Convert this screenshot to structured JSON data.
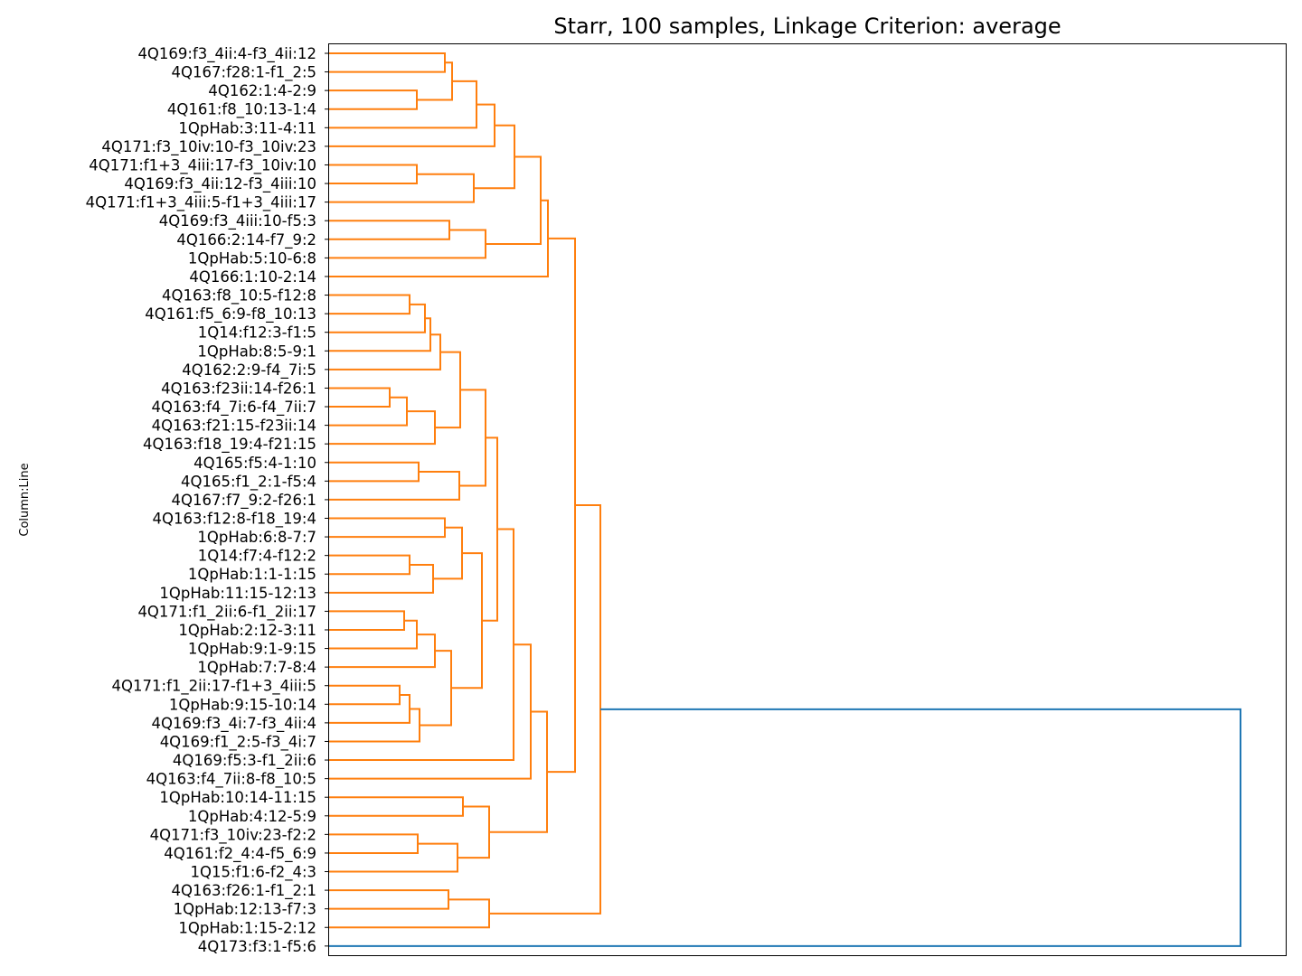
{
  "chart_data": {
    "type": "dendrogram",
    "title": "Starr, 100 samples, Linkage Criterion: average",
    "ylabel": "Column:Line",
    "orientation": "horizontal",
    "colors": {
      "cluster": "#ff7f0e",
      "root": "#1f77b4"
    },
    "leaves": [
      "4Q169:f3_4ii:4-f3_4ii:12",
      "4Q167:f28:1-f1_2:5",
      "4Q162:1:4-2:9",
      "4Q161:f8_10:13-1:4",
      "1QpHab:3:11-4:11",
      "4Q171:f3_10iv:10-f3_10iv:23",
      "4Q171:f1+3_4iii:17-f3_10iv:10",
      "4Q169:f3_4ii:12-f3_4iii:10",
      "4Q171:f1+3_4iii:5-f1+3_4iii:17",
      "4Q169:f3_4iii:10-f5:3",
      "4Q166:2:14-f7_9:2",
      "1QpHab:5:10-6:8",
      "4Q166:1:10-2:14",
      "4Q163:f8_10:5-f12:8",
      "4Q161:f5_6:9-f8_10:13",
      "1Q14:f12:3-f1:5",
      "1QpHab:8:5-9:1",
      "4Q162:2:9-f4_7i:5",
      "4Q163:f23ii:14-f26:1",
      "4Q163:f4_7i:6-f4_7ii:7",
      "4Q163:f21:15-f23ii:14",
      "4Q163:f18_19:4-f21:15",
      "4Q165:f5:4-1:10",
      "4Q165:f1_2:1-f5:4",
      "4Q167:f7_9:2-f26:1",
      "4Q163:f12:8-f18_19:4",
      "1QpHab:6:8-7:7",
      "1Q14:f7:4-f12:2",
      "1QpHab:1:1-1:15",
      "1QpHab:11:15-12:13",
      "4Q171:f1_2ii:6-f1_2ii:17",
      "1QpHab:2:12-3:11",
      "1QpHab:9:1-9:15",
      "1QpHab:7:7-8:4",
      "4Q171:f1_2ii:17-f1+3_4iii:5",
      "1QpHab:9:15-10:14",
      "4Q169:f3_4i:7-f3_4ii:4",
      "4Q169:f1_2:5-f3_4i:7",
      "4Q169:f5:3-f1_2ii:6",
      "4Q163:f4_7ii:8-f8_10:5",
      "1QpHab:10:14-11:15",
      "1QpHab:4:12-5:9",
      "4Q171:f3_10iv:23-f2:2",
      "4Q161:f2_4:4-f5_6:9",
      "1Q15:f1:6-f2_4:3",
      "4Q163:f26:1-f1_2:1",
      "1QpHab:12:13-f7:3",
      "1QpHab:1:15-2:12",
      "4Q173:f3:1-f5:6"
    ],
    "merges": [
      {
        "id": "n0",
        "a": "L0",
        "b": "L1",
        "h": 492
      },
      {
        "id": "n1",
        "a": "L2",
        "b": "L3",
        "h": 461
      },
      {
        "id": "n2",
        "a": "n0",
        "b": "n1",
        "h": 500
      },
      {
        "id": "n3",
        "a": "n2",
        "b": "L4",
        "h": 527
      },
      {
        "id": "n4",
        "a": "n3",
        "b": "L5",
        "h": 547
      },
      {
        "id": "n5",
        "a": "L6",
        "b": "L7",
        "h": 461
      },
      {
        "id": "n6",
        "a": "n5",
        "b": "L8",
        "h": 524
      },
      {
        "id": "n7",
        "a": "n4",
        "b": "n6",
        "h": 569
      },
      {
        "id": "n8",
        "a": "L9",
        "b": "L10",
        "h": 497
      },
      {
        "id": "n9",
        "a": "n8",
        "b": "L11",
        "h": 537
      },
      {
        "id": "n10",
        "a": "n7",
        "b": "n9",
        "h": 598
      },
      {
        "id": "n11",
        "a": "n10",
        "b": "L12",
        "h": 606
      },
      {
        "id": "n12",
        "a": "L13",
        "b": "L14",
        "h": 453
      },
      {
        "id": "n13",
        "a": "n12",
        "b": "L15",
        "h": 470
      },
      {
        "id": "n14",
        "a": "n13",
        "b": "L16",
        "h": 476
      },
      {
        "id": "n15",
        "a": "n14",
        "b": "L17",
        "h": 487
      },
      {
        "id": "n16",
        "a": "L18",
        "b": "L19",
        "h": 431
      },
      {
        "id": "n17",
        "a": "n16",
        "b": "L20",
        "h": 450
      },
      {
        "id": "n18",
        "a": "n17",
        "b": "L21",
        "h": 481
      },
      {
        "id": "n19",
        "a": "n15",
        "b": "n18",
        "h": 509
      },
      {
        "id": "n20",
        "a": "L22",
        "b": "L23",
        "h": 463
      },
      {
        "id": "n21",
        "a": "n20",
        "b": "L24",
        "h": 508
      },
      {
        "id": "n22",
        "a": "n19",
        "b": "n21",
        "h": 537
      },
      {
        "id": "n23",
        "a": "L25",
        "b": "L26",
        "h": 492
      },
      {
        "id": "n24",
        "a": "L27",
        "b": "L28",
        "h": 453
      },
      {
        "id": "n25",
        "a": "n24",
        "b": "L29",
        "h": 479
      },
      {
        "id": "n26",
        "a": "n23",
        "b": "n25",
        "h": 511
      },
      {
        "id": "n27",
        "a": "L30",
        "b": "L31",
        "h": 447
      },
      {
        "id": "n28",
        "a": "n27",
        "b": "L32",
        "h": 461
      },
      {
        "id": "n29",
        "a": "n28",
        "b": "L33",
        "h": 481
      },
      {
        "id": "n30",
        "a": "L34",
        "b": "L35",
        "h": 442
      },
      {
        "id": "n31",
        "a": "n30",
        "b": "L36",
        "h": 453
      },
      {
        "id": "n32",
        "a": "n31",
        "b": "L37",
        "h": 464
      },
      {
        "id": "n33",
        "a": "n29",
        "b": "n32",
        "h": 499
      },
      {
        "id": "n34",
        "a": "n26",
        "b": "n33",
        "h": 533
      },
      {
        "id": "n35",
        "a": "n22",
        "b": "n34",
        "h": 550
      },
      {
        "id": "n36",
        "a": "n35",
        "b": "L38",
        "h": 568
      },
      {
        "id": "n37",
        "a": "n36",
        "b": "L39",
        "h": 587
      },
      {
        "id": "n38",
        "a": "L40",
        "b": "L41",
        "h": 512
      },
      {
        "id": "n39",
        "a": "L42",
        "b": "L43",
        "h": 462
      },
      {
        "id": "n40",
        "a": "n39",
        "b": "L44",
        "h": 506
      },
      {
        "id": "n41",
        "a": "n38",
        "b": "n40",
        "h": 541
      },
      {
        "id": "n42",
        "a": "n37",
        "b": "n41",
        "h": 605
      },
      {
        "id": "n43",
        "a": "n11",
        "b": "n42",
        "h": 636
      },
      {
        "id": "n44",
        "a": "L45",
        "b": "L46",
        "h": 496
      },
      {
        "id": "n45",
        "a": "n44",
        "b": "L47",
        "h": 541
      },
      {
        "id": "n46",
        "a": "n43",
        "b": "n45",
        "h": 664
      },
      {
        "id": "n47",
        "a": "n46",
        "b": "L48",
        "h": 1372
      }
    ]
  }
}
